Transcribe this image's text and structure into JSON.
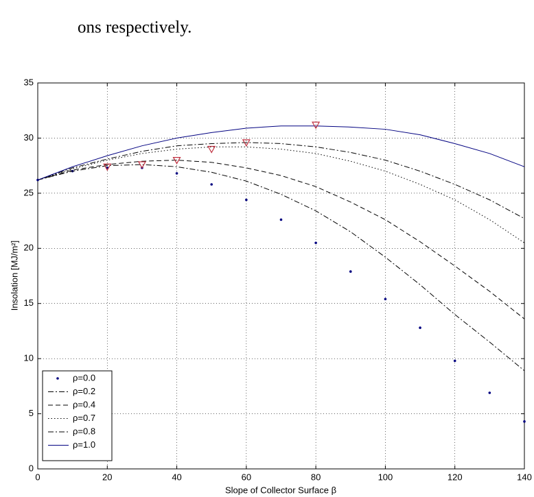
{
  "text": "ons respectively.",
  "chart_data": {
    "type": "line",
    "xlabel": "Slope of Collector Surface β",
    "ylabel": "Insolation [MJ/m²]",
    "x": [
      0,
      10,
      20,
      30,
      40,
      50,
      60,
      70,
      80,
      90,
      100,
      110,
      120,
      130,
      140
    ],
    "series": [
      {
        "name": "ρ=0.0",
        "color": "#000080",
        "style": "markers",
        "values": [
          26.2,
          27.0,
          27.3,
          27.3,
          26.8,
          25.8,
          24.4,
          22.6,
          20.5,
          17.9,
          15.4,
          12.8,
          9.8,
          6.9,
          4.3
        ]
      },
      {
        "name": "ρ=0.2",
        "color": "#000000",
        "style": "dash-dot",
        "values": [
          26.2,
          27.0,
          27.5,
          27.6,
          27.4,
          26.9,
          26.1,
          24.9,
          23.4,
          21.5,
          19.2,
          16.7,
          14.0,
          11.5,
          8.9
        ]
      },
      {
        "name": "ρ=0.4",
        "color": "#000000",
        "style": "dashed",
        "values": [
          26.2,
          27.1,
          27.6,
          27.9,
          28.0,
          27.8,
          27.3,
          26.6,
          25.6,
          24.2,
          22.6,
          20.6,
          18.4,
          16.1,
          13.6
        ]
      },
      {
        "name": "ρ=0.7",
        "color": "#000000",
        "style": "dotted",
        "values": [
          26.2,
          27.2,
          28.0,
          28.6,
          29.0,
          29.2,
          29.2,
          29.0,
          28.6,
          27.9,
          27.0,
          25.8,
          24.4,
          22.6,
          20.5
        ]
      },
      {
        "name": "ρ=0.8",
        "color": "#000000",
        "style": "dash-dot",
        "values": [
          26.2,
          27.3,
          28.1,
          28.8,
          29.3,
          29.5,
          29.6,
          29.5,
          29.2,
          28.7,
          28.0,
          27.0,
          25.8,
          24.4,
          22.7
        ]
      },
      {
        "name": "ρ=1.0",
        "color": "#000080",
        "style": "solid",
        "values": [
          26.2,
          27.4,
          28.4,
          29.3,
          30.0,
          30.5,
          30.9,
          31.1,
          31.1,
          31.0,
          30.8,
          30.3,
          29.5,
          28.6,
          27.4
        ]
      }
    ],
    "markers": {
      "color": "#c03040",
      "x": [
        20,
        30,
        40,
        50,
        60,
        80
      ],
      "values": [
        27.4,
        27.6,
        28.0,
        29.0,
        29.6,
        31.2
      ]
    },
    "xlim": [
      0,
      140
    ],
    "xticks": [
      0,
      20,
      40,
      60,
      80,
      100,
      120,
      140
    ],
    "ylim": [
      0,
      35
    ],
    "yticks": [
      0,
      5,
      10,
      15,
      20,
      25,
      30,
      35
    ],
    "grid": true,
    "legend": "lower left"
  }
}
